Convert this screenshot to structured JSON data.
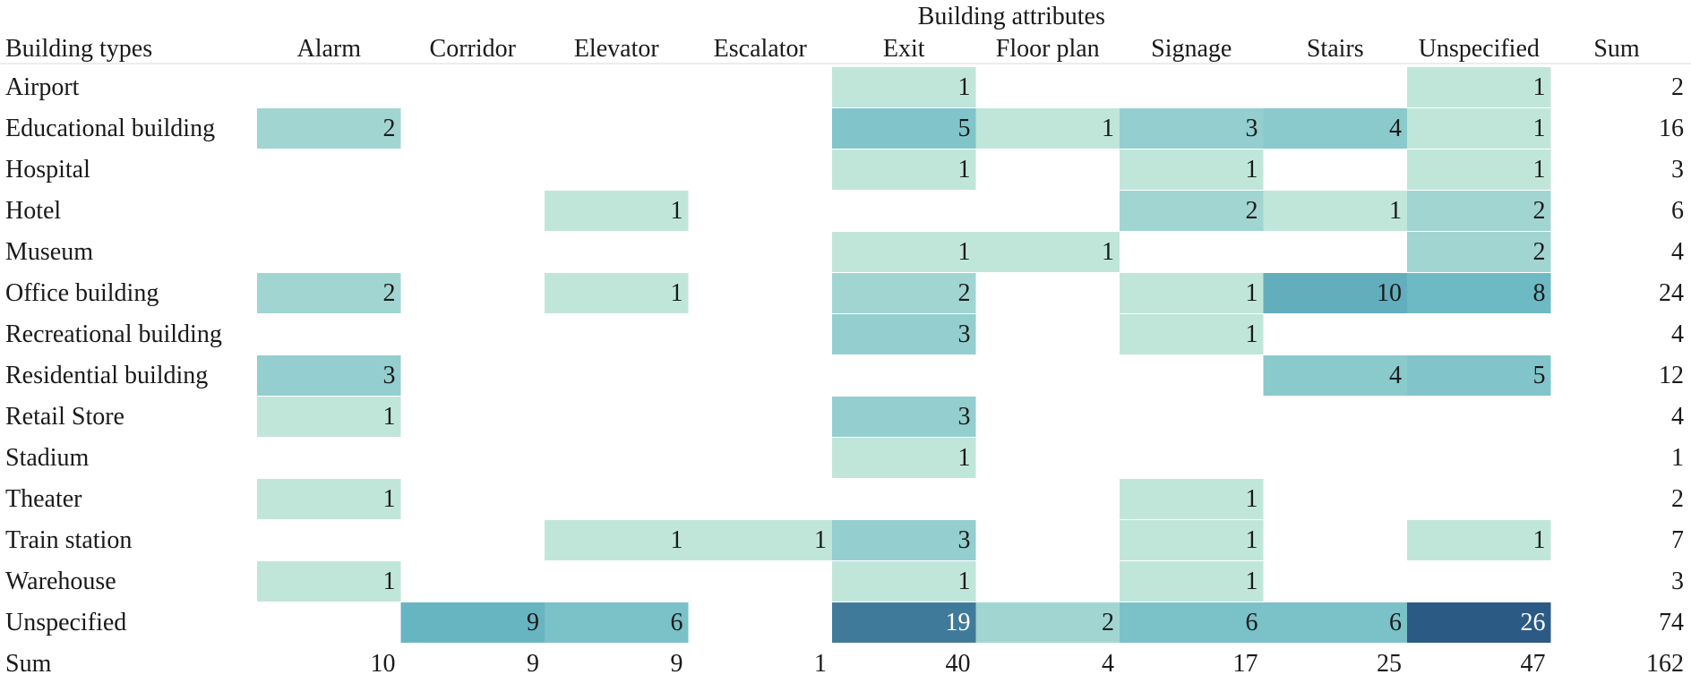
{
  "chart_data": {
    "type": "heatmap",
    "title": "Building attributes",
    "row_header": "Building types",
    "columns": [
      "Alarm",
      "Corridor",
      "Elevator",
      "Escalator",
      "Exit",
      "Floor plan",
      "Signage",
      "Stairs",
      "Unspecified"
    ],
    "sum_label": "Sum",
    "rows": [
      {
        "label": "Airport",
        "values": [
          null,
          null,
          null,
          null,
          1,
          null,
          null,
          null,
          1
        ],
        "sum": 2
      },
      {
        "label": "Educational building",
        "values": [
          2,
          null,
          null,
          null,
          5,
          1,
          3,
          4,
          1
        ],
        "sum": 16
      },
      {
        "label": "Hospital",
        "values": [
          null,
          null,
          null,
          null,
          1,
          null,
          1,
          null,
          1
        ],
        "sum": 3
      },
      {
        "label": "Hotel",
        "values": [
          null,
          null,
          1,
          null,
          null,
          null,
          2,
          1,
          2
        ],
        "sum": 6
      },
      {
        "label": "Museum",
        "values": [
          null,
          null,
          null,
          null,
          1,
          1,
          null,
          null,
          2
        ],
        "sum": 4
      },
      {
        "label": "Office building",
        "values": [
          2,
          null,
          1,
          null,
          2,
          null,
          1,
          10,
          8
        ],
        "sum": 24
      },
      {
        "label": "Recreational building",
        "values": [
          null,
          null,
          null,
          null,
          3,
          null,
          1,
          null,
          null
        ],
        "sum": 4
      },
      {
        "label": "Residential building",
        "values": [
          3,
          null,
          null,
          null,
          null,
          null,
          null,
          4,
          5
        ],
        "sum": 12
      },
      {
        "label": "Retail Store",
        "values": [
          1,
          null,
          null,
          null,
          3,
          null,
          null,
          null,
          null
        ],
        "sum": 4
      },
      {
        "label": "Stadium",
        "values": [
          null,
          null,
          null,
          null,
          1,
          null,
          null,
          null,
          null
        ],
        "sum": 1
      },
      {
        "label": "Theater",
        "values": [
          1,
          null,
          null,
          null,
          null,
          null,
          1,
          null,
          null
        ],
        "sum": 2
      },
      {
        "label": "Train station",
        "values": [
          null,
          null,
          1,
          1,
          3,
          null,
          1,
          null,
          1
        ],
        "sum": 7
      },
      {
        "label": "Warehouse",
        "values": [
          1,
          null,
          null,
          null,
          1,
          null,
          1,
          null,
          null
        ],
        "sum": 3
      },
      {
        "label": "Unspecified",
        "values": [
          null,
          9,
          6,
          null,
          19,
          2,
          6,
          6,
          26
        ],
        "sum": 74
      }
    ],
    "column_sums": [
      10,
      9,
      9,
      1,
      40,
      4,
      17,
      25,
      47
    ],
    "grand_total": 162,
    "color_scale": {
      "low": "#c0e6da",
      "mid": "#6ab8c4",
      "high": "#2b5a85",
      "light_text": "#ffffff",
      "dark_text": "#1a1a1a"
    }
  }
}
